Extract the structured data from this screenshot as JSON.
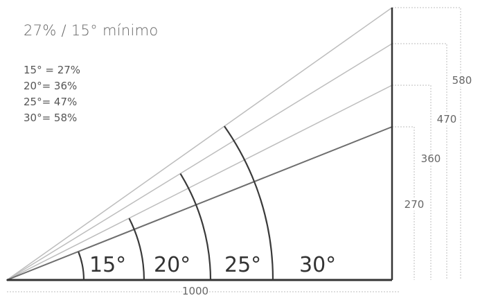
{
  "title": "27% / 15° mínimo",
  "equivalences": [
    {
      "text": "15° = 27%"
    },
    {
      "text": "20°= 36%"
    },
    {
      "text": "25°= 47%"
    },
    {
      "text": "30°= 58%"
    }
  ],
  "angle_labels": [
    "15°",
    "20°",
    "25°",
    "30°"
  ],
  "dimensions": {
    "base_label": "1000",
    "heights": [
      {
        "label": "270",
        "angle": "15°"
      },
      {
        "label": "360",
        "angle": "20°"
      },
      {
        "label": "470",
        "angle": "25°"
      },
      {
        "label": "580",
        "angle": "30°"
      }
    ]
  },
  "colors": {
    "ray_light": "#b9b9b9",
    "ray_dark": "#6e6e6e",
    "arc": "#3a3a3a",
    "dotted": "#bdbdbd"
  }
}
